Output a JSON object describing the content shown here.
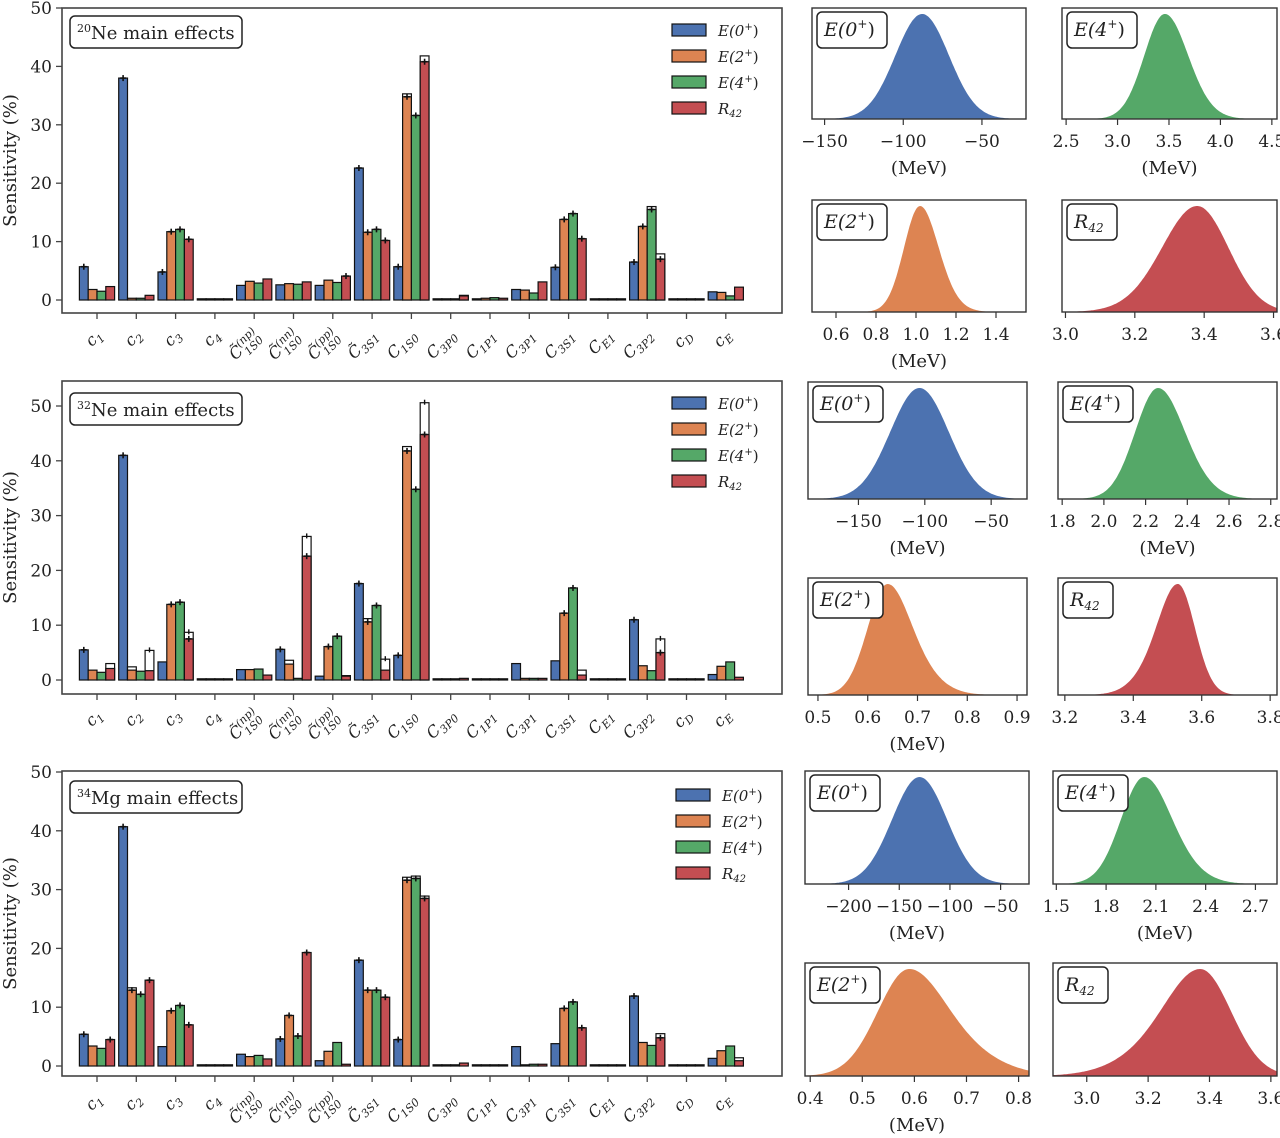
{
  "chart_data": {
    "bar_panels": [
      {
        "type": "bar",
        "title": "20Ne main effects",
        "title_sup": "20",
        "title_text": "Ne main effects",
        "ylabel": "Sensitivity (%)",
        "ylim": [
          0,
          50
        ],
        "yticks": [
          0,
          10,
          20,
          30,
          40,
          50
        ],
        "legend": "top-right",
        "categories": [
          "c1",
          "c2",
          "c3",
          "c4",
          "C1S0(np)",
          "C1S0(nn)",
          "C1S0(pp)",
          "C3S1~",
          "C1S0",
          "C3P0",
          "C1P1",
          "C3P1",
          "C3S1",
          "CE1",
          "C3P2",
          "cD",
          "cE"
        ],
        "series": [
          {
            "name": "E(0+)",
            "values": [
              5.7,
              38.0,
              4.8,
              0.1,
              2.5,
              2.6,
              2.5,
              22.6,
              5.7,
              0.2,
              0.2,
              1.8,
              5.6,
              0.1,
              6.5,
              0.1,
              1.4
            ],
            "totals": [
              null,
              null,
              null,
              null,
              null,
              null,
              null,
              null,
              null,
              null,
              null,
              null,
              null,
              null,
              null,
              null,
              null
            ]
          },
          {
            "name": "E(2+)",
            "values": [
              1.8,
              0.3,
              11.7,
              0.1,
              3.2,
              2.8,
              3.4,
              11.6,
              34.8,
              0.1,
              0.3,
              1.7,
              13.8,
              0.1,
              12.6,
              0.1,
              1.3
            ],
            "totals": [
              null,
              null,
              null,
              null,
              null,
              null,
              null,
              null,
              35.3,
              null,
              null,
              null,
              null,
              null,
              null,
              null,
              null
            ]
          },
          {
            "name": "E(4+)",
            "values": [
              1.5,
              0.3,
              12.1,
              0.1,
              2.9,
              2.7,
              3.0,
              12.1,
              31.6,
              0.1,
              0.4,
              1.2,
              14.8,
              0.1,
              15.5,
              0.1,
              0.7
            ],
            "totals": [
              null,
              null,
              null,
              null,
              null,
              null,
              null,
              null,
              null,
              null,
              null,
              null,
              null,
              null,
              16.0,
              null,
              null
            ]
          },
          {
            "name": "R42",
            "values": [
              2.3,
              0.8,
              10.4,
              0.1,
              3.6,
              3.1,
              4.1,
              10.2,
              40.8,
              0.7,
              0.3,
              3.1,
              10.5,
              0.1,
              7.0,
              0.1,
              2.2
            ],
            "totals": [
              null,
              0.8,
              null,
              null,
              null,
              null,
              null,
              null,
              41.8,
              0.8,
              null,
              null,
              null,
              null,
              7.9,
              null,
              null
            ]
          }
        ]
      },
      {
        "type": "bar",
        "title": "32Ne main effects",
        "title_sup": "32",
        "title_text": "Ne main effects",
        "ylabel": "Sensitivity (%)",
        "ylim": [
          0,
          52
        ],
        "yticks": [
          0,
          10,
          20,
          30,
          40,
          50
        ],
        "legend": "top-right",
        "categories": [
          "c1",
          "c2",
          "c3",
          "c4",
          "C1S0(np)",
          "C1S0(nn)",
          "C1S0(pp)",
          "C3S1~",
          "C1S0",
          "C3P0",
          "C1P1",
          "C3P1",
          "C3S1",
          "CE1",
          "C3P2",
          "cD",
          "cE"
        ],
        "series": [
          {
            "name": "E(0+)",
            "values": [
              5.5,
              41.0,
              3.3,
              0.1,
              1.9,
              5.6,
              0.7,
              17.6,
              4.5,
              0.2,
              0.2,
              3.0,
              3.5,
              0.1,
              11.0,
              0.1,
              1.0
            ],
            "totals": [
              null,
              null,
              null,
              null,
              null,
              null,
              null,
              null,
              null,
              null,
              null,
              null,
              null,
              null,
              null,
              null,
              null
            ]
          },
          {
            "name": "E(2+)",
            "values": [
              1.8,
              1.8,
              13.8,
              0.1,
              1.9,
              2.9,
              6.1,
              10.6,
              41.8,
              0.1,
              0.2,
              0.3,
              12.2,
              0.1,
              2.6,
              0.1,
              2.5
            ],
            "totals": [
              null,
              2.4,
              null,
              null,
              null,
              3.6,
              null,
              11.2,
              42.6,
              null,
              null,
              null,
              null,
              null,
              null,
              null,
              null
            ]
          },
          {
            "name": "E(4+)",
            "values": [
              1.4,
              1.6,
              14.2,
              0.1,
              2.0,
              0.3,
              8.0,
              13.6,
              34.8,
              0.1,
              0.1,
              0.3,
              16.8,
              0.1,
              1.7,
              0.1,
              3.3
            ],
            "totals": [
              null,
              null,
              null,
              null,
              null,
              null,
              null,
              null,
              null,
              null,
              null,
              null,
              null,
              null,
              null,
              null,
              null
            ]
          },
          {
            "name": "R42",
            "values": [
              2.1,
              1.7,
              7.5,
              0.1,
              0.9,
              22.6,
              0.7,
              1.8,
              44.8,
              0.3,
              0.2,
              0.3,
              0.9,
              0.1,
              5.0,
              0.1,
              0.5
            ],
            "totals": [
              3.0,
              5.4,
              8.7,
              null,
              null,
              26.2,
              0.8,
              3.8,
              50.6,
              null,
              null,
              null,
              1.8,
              null,
              7.5,
              null,
              null
            ]
          }
        ]
      },
      {
        "type": "bar",
        "title": "34Mg main effects",
        "title_sup": "34",
        "title_text": "Mg main effects",
        "ylabel": "Sensitivity (%)",
        "ylim": [
          0,
          50
        ],
        "yticks": [
          0,
          10,
          20,
          30,
          40,
          50
        ],
        "legend": "top-right",
        "categories": [
          "c1",
          "c2",
          "c3",
          "c4",
          "C1S0(np)",
          "C1S0(nn)",
          "C1S0(pp)",
          "C3S1~",
          "C1S0",
          "C3P0",
          "C1P1",
          "C3P1",
          "C3S1",
          "CE1",
          "C3P2",
          "cD",
          "cE"
        ],
        "series": [
          {
            "name": "E(0+)",
            "values": [
              5.4,
              40.7,
              3.3,
              0.1,
              2.0,
              4.6,
              0.9,
              18.0,
              4.5,
              0.2,
              0.2,
              3.3,
              3.8,
              0.1,
              11.9,
              0.1,
              1.3
            ],
            "totals": [
              null,
              null,
              null,
              null,
              null,
              null,
              null,
              null,
              null,
              null,
              null,
              null,
              null,
              null,
              null,
              null,
              null
            ]
          },
          {
            "name": "E(2+)",
            "values": [
              3.4,
              12.9,
              9.4,
              0.1,
              1.6,
              8.6,
              2.5,
              12.9,
              31.6,
              0.1,
              0.2,
              0.2,
              9.8,
              0.1,
              4.0,
              0.1,
              2.6
            ],
            "totals": [
              null,
              13.3,
              null,
              null,
              null,
              null,
              null,
              null,
              32.1,
              null,
              null,
              null,
              null,
              null,
              null,
              null,
              null
            ]
          },
          {
            "name": "E(4+)",
            "values": [
              3.0,
              12.2,
              10.3,
              0.1,
              1.8,
              5.1,
              4.0,
              12.9,
              31.9,
              0.1,
              0.1,
              0.3,
              10.9,
              0.1,
              3.5,
              0.1,
              3.4
            ],
            "totals": [
              null,
              null,
              null,
              null,
              null,
              null,
              null,
              null,
              32.3,
              null,
              null,
              null,
              null,
              null,
              null,
              null,
              null
            ]
          },
          {
            "name": "R42",
            "values": [
              4.5,
              14.6,
              7.0,
              0.1,
              1.2,
              19.3,
              0.3,
              11.7,
              28.5,
              0.5,
              0.2,
              0.3,
              6.5,
              0.1,
              4.8,
              0.1,
              0.9
            ],
            "totals": [
              null,
              null,
              null,
              null,
              null,
              null,
              null,
              null,
              28.9,
              null,
              null,
              null,
              null,
              null,
              5.5,
              null,
              1.4
            ]
          }
        ]
      }
    ],
    "histogram_panels": [
      {
        "row": 0,
        "label": "E(0+)",
        "color_key": "E(0+)",
        "xlabel": "(MeV)",
        "xlim": [
          -158,
          -22
        ],
        "xticks": [
          -150,
          -100,
          -50
        ],
        "dist": {
          "mean": -88,
          "sd": 17,
          "skew": 0
        }
      },
      {
        "row": 0,
        "label": "E(4+)",
        "color_key": "E(4+)",
        "xlabel": "(MeV)",
        "xlim": [
          2.46,
          4.55
        ],
        "xticks": [
          2.5,
          3.0,
          3.5,
          4.0,
          4.5
        ],
        "dist": {
          "mean": 3.46,
          "sd": 0.2,
          "skew": 0.3
        }
      },
      {
        "row": 0,
        "label": "E(2+)",
        "color_key": "E(2+)",
        "xlabel": "(MeV)",
        "xlim": [
          0.48,
          1.55
        ],
        "xticks": [
          0.6,
          0.8,
          1.0,
          1.2,
          1.4
        ],
        "dist": {
          "mean": 1.02,
          "sd": 0.08,
          "skew": 0.4
        }
      },
      {
        "row": 0,
        "label": "R42",
        "color_key": "R42",
        "xlabel": "",
        "xlim": [
          2.99,
          3.61
        ],
        "xticks": [
          3.0,
          3.2,
          3.4,
          3.6
        ],
        "dist": {
          "mean": 3.38,
          "sd": 0.09,
          "skew": -0.3
        }
      },
      {
        "row": 1,
        "label": "E(0+)",
        "color_key": "E(0+)",
        "xlabel": "(MeV)",
        "xlim": [
          -188,
          -23
        ],
        "xticks": [
          -150,
          -100,
          -50
        ],
        "dist": {
          "mean": -104,
          "sd": 22,
          "skew": 0
        }
      },
      {
        "row": 1,
        "label": "E(4+)",
        "color_key": "E(4+)",
        "xlabel": "(MeV)",
        "xlim": [
          1.78,
          2.83
        ],
        "xticks": [
          1.8,
          2.0,
          2.2,
          2.4,
          2.6,
          2.8
        ],
        "dist": {
          "mean": 2.26,
          "sd": 0.11,
          "skew": 0.4
        }
      },
      {
        "row": 1,
        "label": "E(2+)",
        "color_key": "E(2+)",
        "xlabel": "(MeV)",
        "xlim": [
          0.48,
          0.92
        ],
        "xticks": [
          0.5,
          0.6,
          0.7,
          0.8,
          0.9
        ],
        "dist": {
          "mean": 0.64,
          "sd": 0.04,
          "skew": 0.7
        }
      },
      {
        "row": 1,
        "label": "R42",
        "color_key": "R42",
        "xlabel": "",
        "xlim": [
          3.18,
          3.82
        ],
        "xticks": [
          3.2,
          3.4,
          3.6,
          3.8
        ],
        "dist": {
          "mean": 3.53,
          "sd": 0.05,
          "skew": -0.7
        }
      },
      {
        "row": 2,
        "label": "E(0+)",
        "color_key": "E(0+)",
        "xlabel": "(MeV)",
        "xlim": [
          -243,
          -22
        ],
        "xticks": [
          -200,
          -150,
          -100,
          -50
        ],
        "dist": {
          "mean": -130,
          "sd": 27,
          "skew": 0
        }
      },
      {
        "row": 2,
        "label": "E(4+)",
        "color_key": "E(4+)",
        "xlabel": "(MeV)",
        "xlim": [
          1.48,
          2.83
        ],
        "xticks": [
          1.5,
          1.8,
          2.1,
          2.4,
          2.7
        ],
        "dist": {
          "mean": 2.03,
          "sd": 0.14,
          "skew": 0.5
        }
      },
      {
        "row": 2,
        "label": "E(2+)",
        "color_key": "E(2+)",
        "xlabel": "(MeV)",
        "xlim": [
          0.39,
          0.82
        ],
        "xticks": [
          0.4,
          0.5,
          0.6,
          0.7,
          0.8
        ],
        "dist": {
          "mean": 0.59,
          "sd": 0.06,
          "skew": 0.9
        }
      },
      {
        "row": 2,
        "label": "R42",
        "color_key": "R42",
        "xlabel": "",
        "xlim": [
          2.89,
          3.62
        ],
        "xticks": [
          3.0,
          3.2,
          3.4,
          3.6
        ],
        "dist": {
          "mean": 3.37,
          "sd": 0.1,
          "skew": -0.8
        }
      }
    ],
    "colors": {
      "E(0+)": "#4c72b0",
      "E(2+)": "#dd8452",
      "E(4+)": "#55a868",
      "R42": "#c44e52"
    },
    "legend_entries": [
      {
        "key": "E(0+)",
        "base": "E(0",
        "sup": "+",
        "close": ")"
      },
      {
        "key": "E(2+)",
        "base": "E(2",
        "sup": "+",
        "close": ")"
      },
      {
        "key": "E(4+)",
        "base": "E(4",
        "sup": "+",
        "close": ")"
      },
      {
        "key": "R42",
        "base": "R",
        "sub": "42"
      }
    ],
    "category_labels": [
      {
        "main": "c",
        "sub": "1"
      },
      {
        "main": "c",
        "sub": "2"
      },
      {
        "main": "c",
        "sub": "3"
      },
      {
        "main": "c",
        "sub": "4"
      },
      {
        "main": "C̃",
        "sub": "1S0",
        "sup": "(np)"
      },
      {
        "main": "C̃",
        "sub": "1S0",
        "sup": "(nn)"
      },
      {
        "main": "C̃",
        "sub": "1S0",
        "sup": "(pp)"
      },
      {
        "main": "C̃",
        "sub": "3S1"
      },
      {
        "main": "C",
        "sub": "1S0"
      },
      {
        "main": "C",
        "sub": "3P0"
      },
      {
        "main": "C",
        "sub": "1P1"
      },
      {
        "main": "C",
        "sub": "3P1"
      },
      {
        "main": "C",
        "sub": "3S1"
      },
      {
        "main": "C",
        "sub": "E1"
      },
      {
        "main": "C",
        "sub": "3P2"
      },
      {
        "main": "c",
        "sub": "D"
      },
      {
        "main": "c",
        "sub": "E"
      }
    ]
  }
}
